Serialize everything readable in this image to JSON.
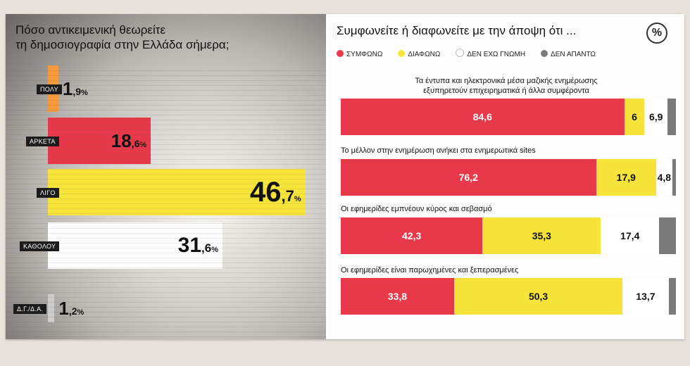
{
  "colors": {
    "orange": "#f39a3c",
    "red": "#e8394b",
    "yellow": "#f7e43a",
    "white": "#ffffff",
    "gray": "#7b7b7b"
  },
  "left": {
    "title": "Πόσο αντικειμενική θεωρείτε\nτη δημοσιογραφία στην Ελλάδα σήμερα;",
    "pct_sign": "%"
  },
  "chart_data": [
    {
      "type": "bar",
      "orientation": "horizontal",
      "title": "Πόσο αντικειμενική θεωρείτε τη δημοσιογραφία στην Ελλάδα σήμερα;",
      "categories": [
        "ΠΟΛΥ",
        "ΑΡΚΕΤΑ",
        "ΛΙΓΟ",
        "ΚΑΘΟΛΟΥ",
        "Δ.Γ./Δ.Α."
      ],
      "values": [
        1.9,
        18.6,
        46.7,
        31.6,
        1.2
      ],
      "value_int": [
        "1",
        "18",
        "46",
        "31",
        "1"
      ],
      "value_dec": [
        ",9",
        ",6",
        ",7",
        ",6",
        ",2"
      ],
      "bar_colors": [
        "#f39a3c",
        "#e8394b",
        "#f7e43a",
        "#ffffff",
        "#cccccc"
      ],
      "unit": "%"
    },
    {
      "type": "bar",
      "orientation": "horizontal",
      "stacked": true,
      "title": "Συμφωνείτε ή διαφωνείτε με την άποψη ότι ...",
      "series_names": [
        "ΣΥΜΦΩΝΩ",
        "ΔΙΑΦΩΝΩ",
        "ΔΕΝ ΕΧΩ ΓΝΩΜΗ",
        "ΔΕΝ ΑΠΑΝΤΩ"
      ],
      "series_colors": [
        "#e8394b",
        "#f7e43a",
        "#ffffff",
        "#7b7b7b"
      ],
      "rows": [
        {
          "question": "Τα έντυπα και ηλεκτρονικά μέσα μαζικής ενημέρωσης\nεξυπηρετούν επιχειρηματικά ή άλλα συμφέροντα",
          "values": [
            84.6,
            6,
            6.9,
            2.5
          ],
          "labels": [
            "84,6",
            "6",
            "6,9",
            ""
          ]
        },
        {
          "question": "Το μέλλον στην ενημέρωση ανήκει στα ενημερωτικά sites",
          "values": [
            76.2,
            17.9,
            4.8,
            1.1
          ],
          "labels": [
            "76,2",
            "17,9",
            "4,8",
            ""
          ]
        },
        {
          "question": "Οι εφημερίδες εμπνέουν κύρος και σεβασμό",
          "values": [
            42.3,
            35.3,
            17.4,
            5.0
          ],
          "labels": [
            "42,3",
            "35,3",
            "17,4",
            ""
          ]
        },
        {
          "question": "Οι εφημερίδες είναι παρωχημένες και ξεπερασμένες",
          "values": [
            33.8,
            50.3,
            13.7,
            2.2
          ],
          "labels": [
            "33,8",
            "50,3",
            "13,7",
            ""
          ]
        }
      ]
    }
  ],
  "right": {
    "title": "Συμφωνείτε ή διαφωνείτε με την άποψη ότι ...",
    "pct_icon": "%",
    "legend": [
      "ΣΥΜΦΩΝΩ",
      "ΔΙΑΦΩΝΩ",
      "ΔΕΝ ΕΧΩ ΓΝΩΜΗ",
      "ΔΕΝ ΑΠΑΝΤΩ"
    ]
  }
}
